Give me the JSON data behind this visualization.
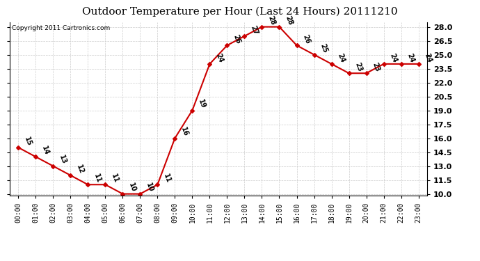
{
  "title": "Outdoor Temperature per Hour (Last 24 Hours) 20111210",
  "copyright": "Copyright 2011 Cartronics.com",
  "hours": [
    "00:00",
    "01:00",
    "02:00",
    "03:00",
    "04:00",
    "05:00",
    "06:00",
    "07:00",
    "08:00",
    "09:00",
    "10:00",
    "11:00",
    "12:00",
    "13:00",
    "14:00",
    "15:00",
    "16:00",
    "17:00",
    "18:00",
    "19:00",
    "20:00",
    "21:00",
    "22:00",
    "23:00"
  ],
  "temps": [
    15,
    14,
    13,
    12,
    11,
    11,
    10,
    10,
    11,
    16,
    19,
    24,
    26,
    27,
    28,
    28,
    26,
    25,
    24,
    23,
    23,
    24,
    24,
    24
  ],
  "line_color": "#cc0000",
  "marker": "D",
  "marker_size": 3,
  "bg_color": "#ffffff",
  "grid_color": "#cccccc",
  "ylim_min": 10.0,
  "ylim_max": 28.0,
  "ytick_step": 1.5,
  "title_fontsize": 11,
  "label_fontsize": 7,
  "copyright_fontsize": 6.5,
  "tick_fontsize": 7,
  "ytick_fontsize": 8
}
